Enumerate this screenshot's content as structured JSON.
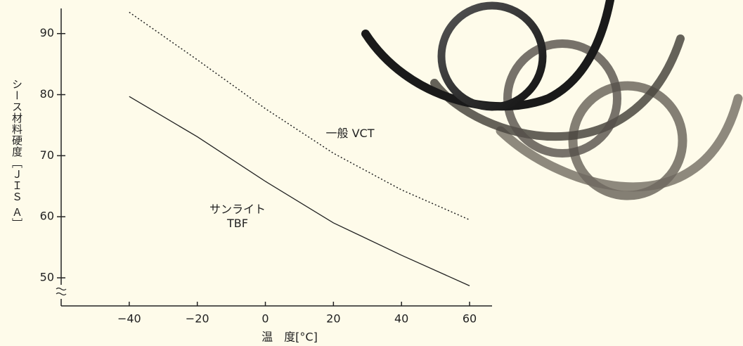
{
  "chart_data": {
    "type": "line",
    "x_label": "温　度[°C]",
    "y_label": "シース材料硬度［ＪＩＳ Ａ］",
    "x": [
      -40,
      -20,
      0,
      20,
      40,
      60
    ],
    "series": [
      {
        "name": "サンライト TBF",
        "color": "#222222",
        "style": "solid",
        "values": [
          79.7,
          73.1,
          65.8,
          59.0,
          53.7,
          48.7
        ]
      },
      {
        "name": "一般 VCT",
        "color": "#222222",
        "style": "dotted",
        "values": [
          93.5,
          85.7,
          77.7,
          70.4,
          64.4,
          59.5
        ]
      }
    ],
    "xlim": [
      -60,
      66.5
    ],
    "ylim": [
      45.4,
      94
    ],
    "xticks": [
      {
        "value": -40,
        "label": "−40"
      },
      {
        "value": -20,
        "label": "−20"
      },
      0,
      20,
      40,
      60
    ],
    "yticks": [
      50,
      60,
      70,
      80,
      90
    ]
  }
}
